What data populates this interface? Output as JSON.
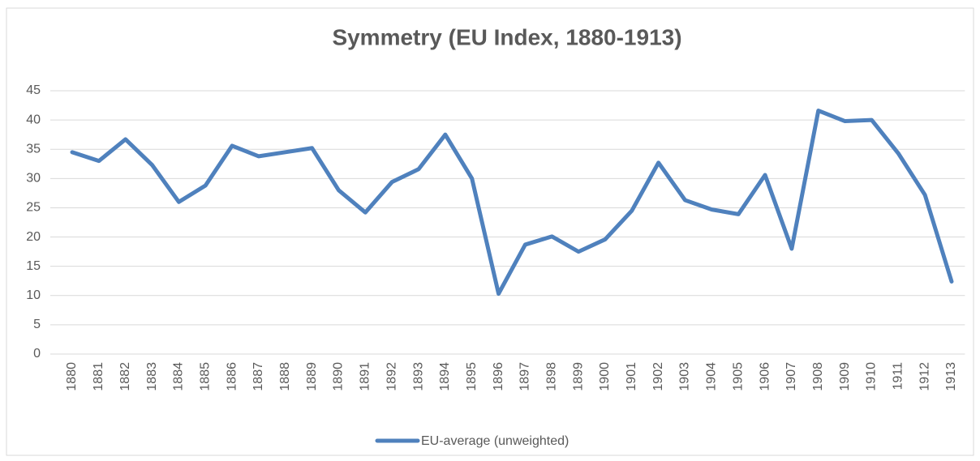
{
  "chart_data": {
    "type": "line",
    "title": "Symmetry (EU Index, 1880-1913)",
    "categories": [
      "1880",
      "1881",
      "1882",
      "1883",
      "1884",
      "1885",
      "1886",
      "1887",
      "1888",
      "1889",
      "1890",
      "1891",
      "1892",
      "1893",
      "1894",
      "1895",
      "1896",
      "1897",
      "1898",
      "1899",
      "1900",
      "1901",
      "1902",
      "1903",
      "1904",
      "1905",
      "1906",
      "1907",
      "1908",
      "1909",
      "1910",
      "1911",
      "1912",
      "1913"
    ],
    "series": [
      {
        "name": "EU-average (unweighted)",
        "color": "#4f81bd",
        "values": [
          34.5,
          33,
          36.7,
          32.3,
          26,
          28.8,
          35.6,
          33.8,
          34.5,
          35.2,
          28,
          24.2,
          29.4,
          31.6,
          37.5,
          30,
          10.3,
          18.7,
          20.1,
          17.5,
          19.6,
          24.5,
          32.7,
          26.3,
          24.7,
          23.9,
          30.6,
          18,
          41.6,
          39.8,
          40,
          34.3,
          27.2,
          12.4
        ]
      }
    ],
    "ylim": [
      0,
      45
    ],
    "yticks": [
      0,
      5,
      10,
      15,
      20,
      25,
      30,
      35,
      40,
      45
    ],
    "grid": true,
    "legend": "bottom"
  }
}
